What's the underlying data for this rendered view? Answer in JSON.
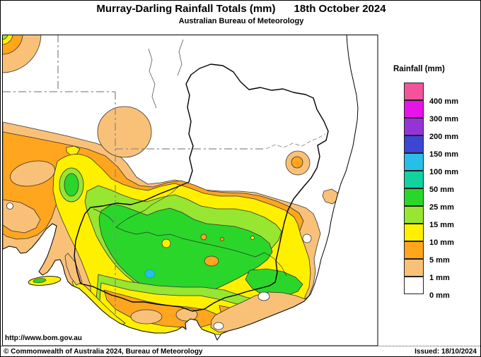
{
  "header": {
    "title": "Murray-Darling Rainfall Totals (mm)",
    "date": "18th October 2024",
    "subtitle": "Australian Bureau of Meteorology"
  },
  "legend": {
    "title": "Rainfall (mm)",
    "bands": [
      {
        "label": "400 mm",
        "color": "#F2539B"
      },
      {
        "label": "300 mm",
        "color": "#E813E8"
      },
      {
        "label": "200 mm",
        "color": "#9633D6"
      },
      {
        "label": "150 mm",
        "color": "#3C46D2"
      },
      {
        "label": "100 mm",
        "color": "#29BEE8"
      },
      {
        "label": "50 mm",
        "color": "#12D29E"
      },
      {
        "label": "25 mm",
        "color": "#2BD62B"
      },
      {
        "label": "15 mm",
        "color": "#96E632"
      },
      {
        "label": "10 mm",
        "color": "#FFF000"
      },
      {
        "label": "5 mm",
        "color": "#FFA51E"
      },
      {
        "label": "1 mm",
        "color": "#F9C178"
      },
      {
        "label": "0 mm",
        "color": "#FFFFFF"
      }
    ]
  },
  "footer": {
    "url": "http://www.bom.gov.au",
    "copyright": "© Commonwealth of Australia 2024, Bureau of Meteorology",
    "issued": "Issued: 18/10/2024"
  }
}
